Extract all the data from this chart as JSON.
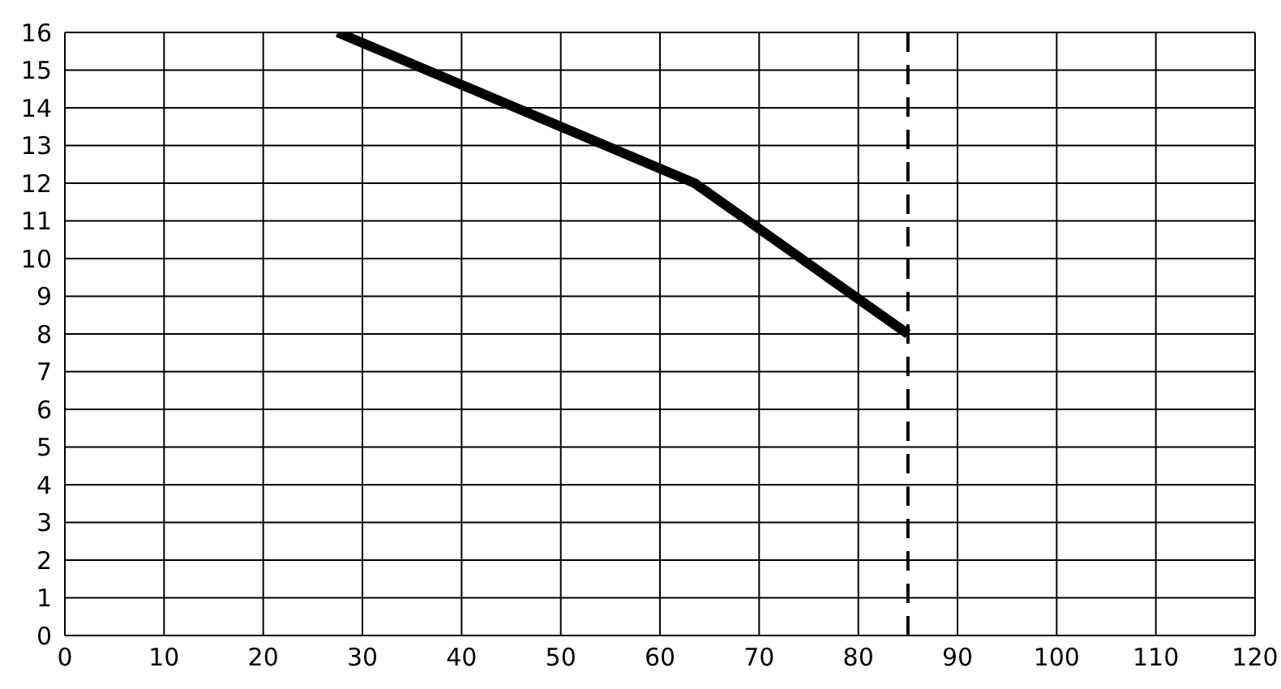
{
  "chart_data": {
    "type": "line",
    "x": [
      27.5,
      63.5,
      85
    ],
    "series": [
      {
        "color": "#000000",
        "values": [
          16,
          12,
          8
        ]
      }
    ],
    "xlim": [
      0,
      120
    ],
    "xticks": [
      0,
      10,
      20,
      30,
      40,
      50,
      60,
      70,
      80,
      90,
      100,
      110,
      120
    ],
    "ylim": [
      0,
      16
    ],
    "yticks": [
      0,
      1,
      2,
      3,
      4,
      5,
      6,
      7,
      8,
      9,
      10,
      11,
      12,
      13,
      14,
      15,
      16
    ],
    "grid": true,
    "marker": "none",
    "line_style": "solid",
    "ref_lines": [
      {
        "axis": "x",
        "value": 85,
        "color": "#000000",
        "line_style": "dashed"
      }
    ]
  }
}
